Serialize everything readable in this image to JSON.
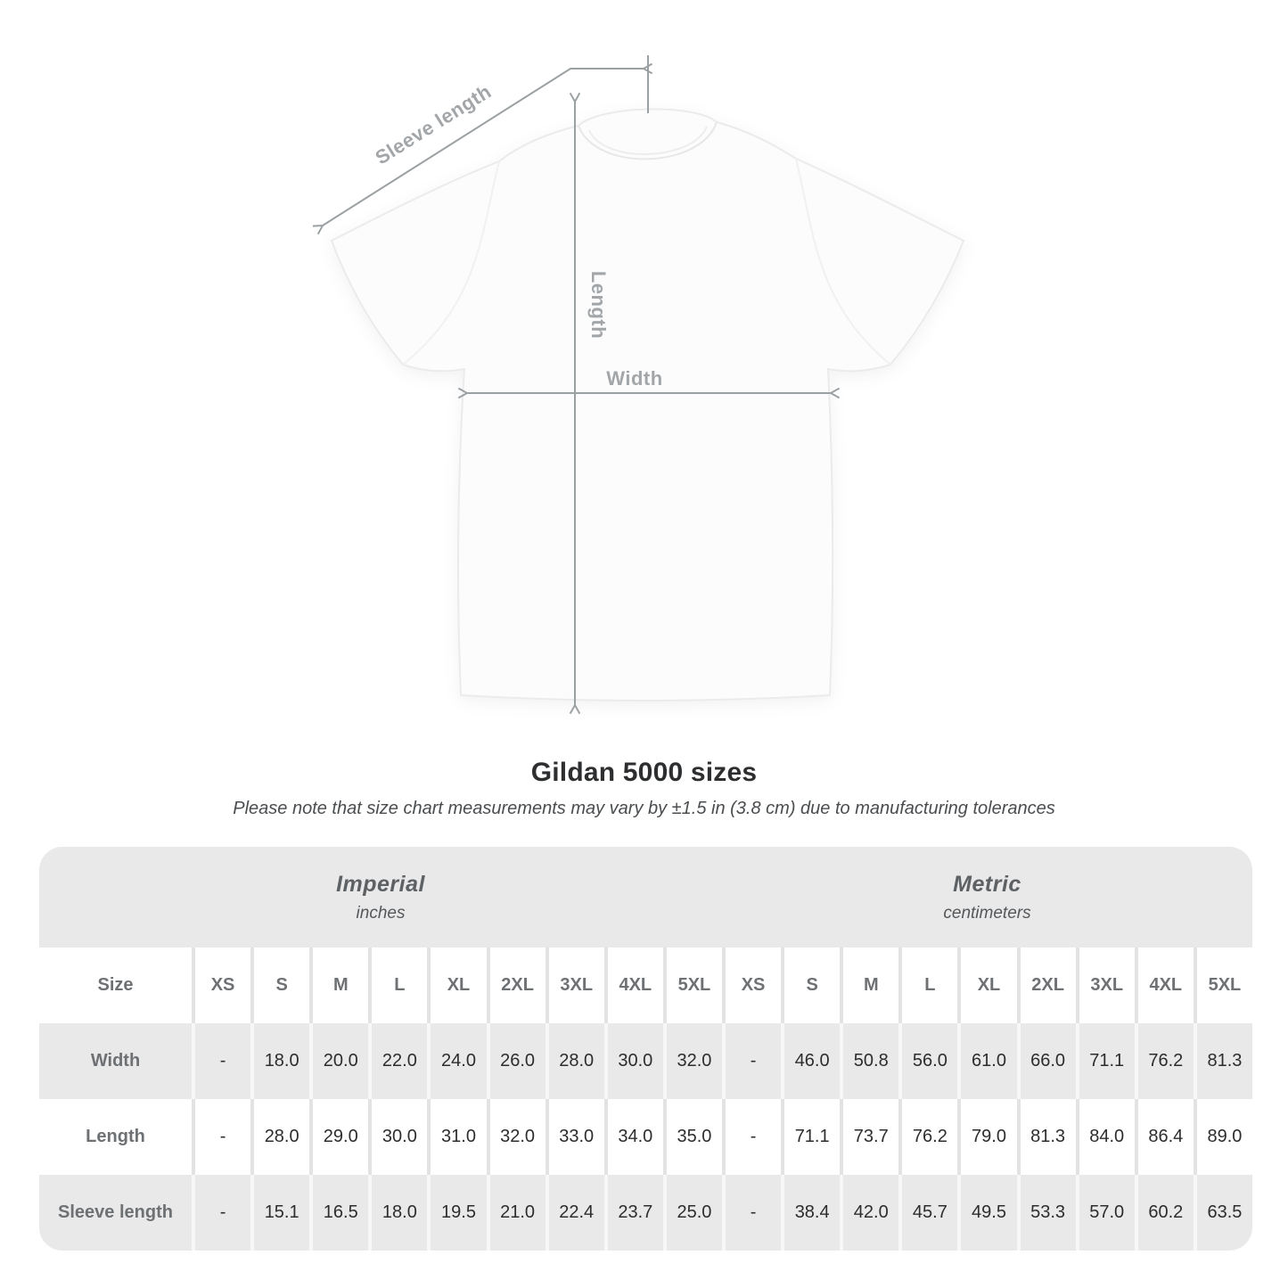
{
  "diagram": {
    "labels": {
      "sleeve_length": "Sleeve length",
      "length": "Length",
      "width": "Width"
    }
  },
  "title": "Gildan 5000 sizes",
  "subtitle": "Please note that size chart measurements may vary by ±1.5 in (3.8 cm) due to manufacturing tolerances",
  "table": {
    "size_column_header": "Size",
    "unit_groups": [
      {
        "name": "Imperial",
        "unit": "inches"
      },
      {
        "name": "Metric",
        "unit": "centimeters"
      }
    ],
    "sizes": [
      "XS",
      "S",
      "M",
      "L",
      "XL",
      "2XL",
      "3XL",
      "4XL",
      "5XL"
    ],
    "rows": [
      {
        "label": "Width",
        "imperial": [
          "-",
          "18.0",
          "20.0",
          "22.0",
          "24.0",
          "26.0",
          "28.0",
          "30.0",
          "32.0"
        ],
        "metric": [
          "-",
          "46.0",
          "50.8",
          "56.0",
          "61.0",
          "66.0",
          "71.1",
          "76.2",
          "81.3"
        ]
      },
      {
        "label": "Length",
        "imperial": [
          "-",
          "28.0",
          "29.0",
          "30.0",
          "31.0",
          "32.0",
          "33.0",
          "34.0",
          "35.0"
        ],
        "metric": [
          "-",
          "71.1",
          "73.7",
          "76.2",
          "79.0",
          "81.3",
          "84.0",
          "86.4",
          "89.0"
        ]
      },
      {
        "label": "Sleeve length",
        "imperial": [
          "-",
          "15.1",
          "16.5",
          "18.0",
          "19.5",
          "21.0",
          "22.4",
          "23.7",
          "25.0"
        ],
        "metric": [
          "-",
          "38.4",
          "42.0",
          "45.7",
          "49.5",
          "53.3",
          "57.0",
          "60.2",
          "63.5"
        ]
      }
    ]
  },
  "colors": {
    "page_background": "#ffffff",
    "table_band_gray": "#e9e9e9",
    "header_text_gray": "#6e7174",
    "data_text": "#2d2d2d",
    "diagram_line_gray": "#9ba0a3",
    "diagram_label_gray": "#a2a6a9"
  }
}
